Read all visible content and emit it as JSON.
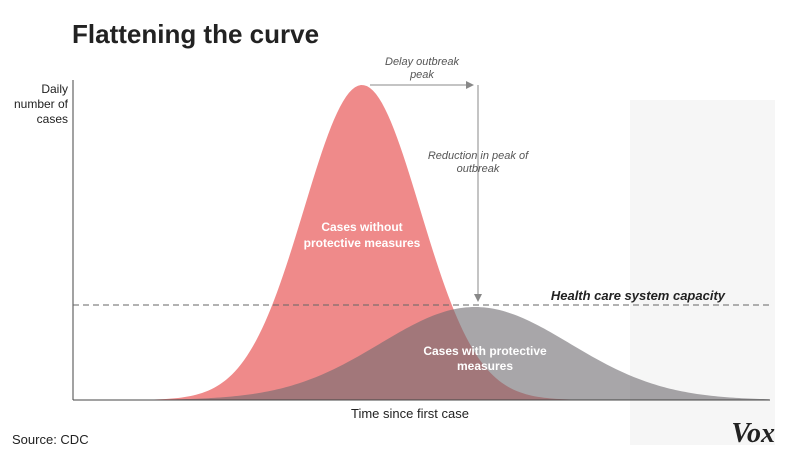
{
  "title": "Flattening the curve",
  "y_label": [
    "Daily",
    "number of",
    "cases"
  ],
  "x_label": "Time since first case",
  "capacity_label": "Health care system capacity",
  "delay_label": [
    "Delay outbreak",
    "peak"
  ],
  "reduction_label": [
    "Reduction in peak of",
    "outbreak"
  ],
  "without_label": [
    "Cases without",
    "protective measures"
  ],
  "with_label": [
    "Cases with protective",
    "measures"
  ],
  "source": "Source: CDC",
  "logo": "Vox"
}
